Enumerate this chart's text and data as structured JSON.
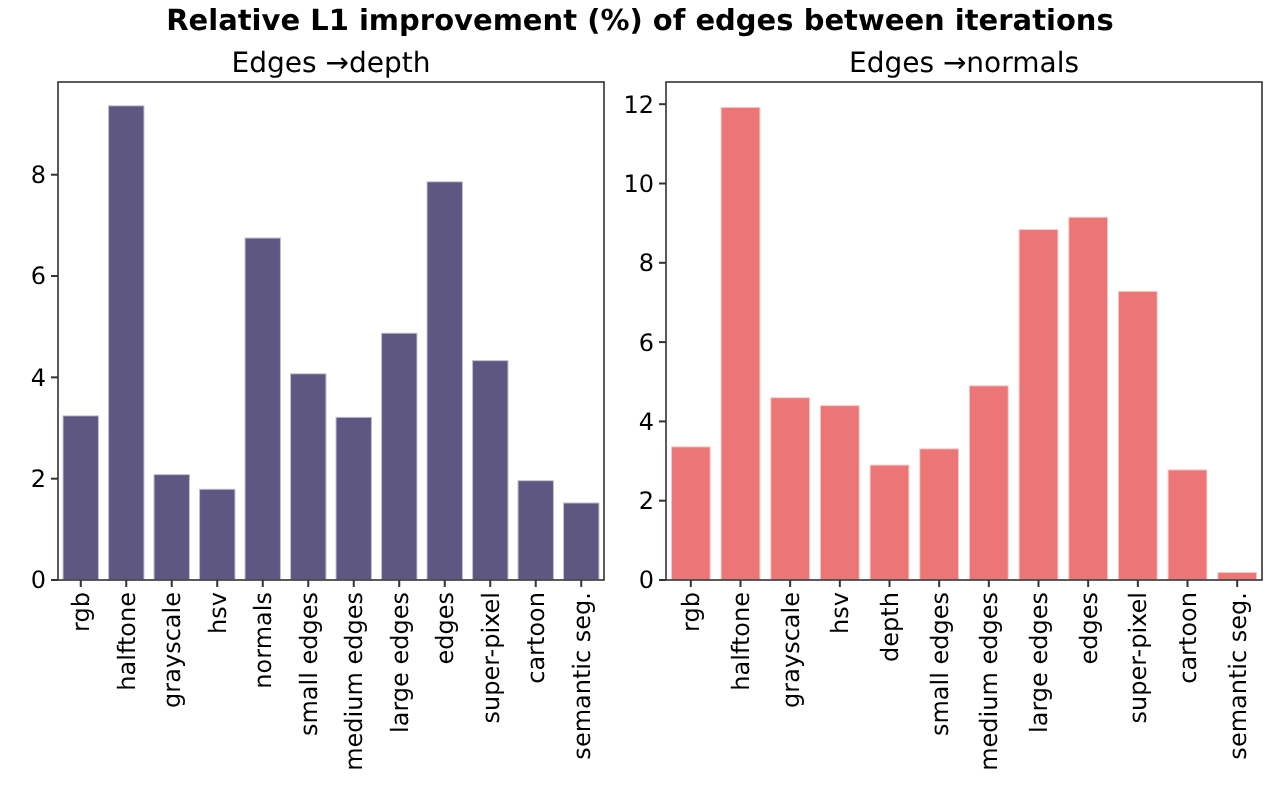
{
  "chart_data": [
    {
      "type": "bar",
      "title": "Relative L1 improvement (%) of edges between iterations",
      "subtitle": "Edges →depth",
      "categories": [
        "rgb",
        "halftone",
        "grayscale",
        "hsv",
        "normals",
        "small edges",
        "medium edges",
        "large edges",
        "edges",
        "super-pixel",
        "cartoon",
        "semantic seg."
      ],
      "values": [
        3.25,
        9.37,
        2.09,
        1.8,
        6.76,
        4.08,
        3.22,
        4.88,
        7.87,
        4.34,
        1.97,
        1.53
      ],
      "color": "#5e5782",
      "ylim": [
        0,
        9.83
      ],
      "yticks": [
        0,
        2,
        4,
        6,
        8
      ]
    },
    {
      "type": "bar",
      "subtitle": "Edges →normals",
      "categories": [
        "rgb",
        "halftone",
        "grayscale",
        "hsv",
        "depth",
        "small edges",
        "medium edges",
        "large edges",
        "edges",
        "super-pixel",
        "cartoon",
        "semantic seg."
      ],
      "values": [
        3.37,
        11.93,
        4.61,
        4.41,
        2.91,
        3.32,
        4.91,
        8.85,
        9.16,
        7.29,
        2.79,
        0.2
      ],
      "color": "#ec7575",
      "ylim": [
        0,
        12.56
      ],
      "yticks": [
        0,
        2,
        4,
        6,
        8,
        10,
        12
      ]
    }
  ]
}
